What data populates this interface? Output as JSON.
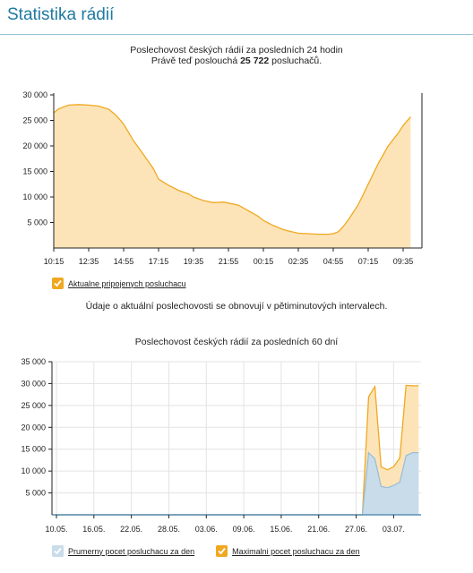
{
  "page": {
    "title": "Statistika rádií",
    "note": "Údaje o aktuální poslechovosti se obnovují v pětiminutových intervalech."
  },
  "colors": {
    "title": "#1f7aa0",
    "orange_line": "#f0a820",
    "orange_fill": "#fde4b8",
    "blue_fill": "#c8dcea",
    "blue_line": "#9bbfd6",
    "axis": "#222222"
  },
  "chart24": {
    "heading_line1": "Poslechovost českých rádií za posledních 24 hodin",
    "heading_line2_prefix": "Právě teď poslouchá",
    "heading_line2_value": "25 722",
    "heading_line2_suffix": "posluchačů.",
    "legend_label": "Aktualne pripojenych posluchacu",
    "legend_icon": "checkmark-icon"
  },
  "chart60": {
    "heading": "Poslechovost českých rádií za posledních 60 dní",
    "legend": [
      {
        "label": "Prumerny pocet posluchacu za den",
        "color": "#c8dcea",
        "icon": "checkmark-icon"
      },
      {
        "label": "Maximalni pocet posluchacu za den",
        "color": "#f0a820",
        "icon": "checkmark-icon"
      }
    ]
  },
  "chart_data": [
    {
      "type": "area",
      "title": "Poslechovost českých rádií za posledních 24 hodin",
      "x_ticks": [
        "10:15",
        "12:35",
        "14:55",
        "17:15",
        "19:35",
        "21:55",
        "00:15",
        "02:35",
        "04:55",
        "07:15",
        "09:35"
      ],
      "ylim": [
        0,
        30000
      ],
      "y_ticks": [
        5000,
        10000,
        15000,
        20000,
        25000,
        30000
      ],
      "y_tick_labels": [
        "5 000",
        "10 000",
        "15 000",
        "20 000",
        "25 000",
        "30 000"
      ],
      "grid": false,
      "series": [
        {
          "name": "Aktualne pripojenych posluchacu",
          "x": [
            "10:15",
            "10:35",
            "11:15",
            "11:55",
            "12:35",
            "13:15",
            "13:55",
            "14:25",
            "14:55",
            "15:35",
            "16:15",
            "16:55",
            "17:15",
            "17:55",
            "18:35",
            "19:15",
            "19:35",
            "20:15",
            "20:55",
            "21:35",
            "21:55",
            "22:35",
            "23:15",
            "23:55",
            "00:15",
            "00:55",
            "01:35",
            "02:15",
            "02:35",
            "03:15",
            "03:55",
            "04:35",
            "04:55",
            "05:15",
            "05:35",
            "05:55",
            "06:35",
            "07:15",
            "07:55",
            "08:35",
            "09:15",
            "09:35",
            "10:05"
          ],
          "values": [
            26500,
            27300,
            28000,
            28100,
            28000,
            27800,
            27200,
            26000,
            24300,
            21000,
            18300,
            15500,
            13500,
            12300,
            11300,
            10600,
            10000,
            9300,
            8900,
            9000,
            8800,
            8400,
            7300,
            6200,
            5400,
            4400,
            3600,
            3100,
            2900,
            2800,
            2700,
            2700,
            2800,
            3200,
            4200,
            5500,
            8500,
            12500,
            16500,
            20000,
            22500,
            24000,
            25722
          ]
        }
      ]
    },
    {
      "type": "area",
      "title": "Poslechovost českých rádií za posledních 60 dní",
      "x_ticks": [
        "10.05.",
        "16.05.",
        "22.05.",
        "28.05.",
        "03.06.",
        "09.06.",
        "15.06.",
        "21.06.",
        "27.06.",
        "03.07."
      ],
      "ylim": [
        0,
        35000
      ],
      "y_ticks": [
        5000,
        10000,
        15000,
        20000,
        25000,
        30000,
        35000
      ],
      "y_tick_labels": [
        "5 000",
        "10 000",
        "15 000",
        "20 000",
        "25 000",
        "30 000",
        "35 000"
      ],
      "grid": true,
      "series": [
        {
          "name": "Maximalni pocet posluchacu za den",
          "x": [
            "10.05.",
            "28.06.",
            "29.06.",
            "30.06.",
            "01.07.",
            "02.07.",
            "03.07.",
            "04.07.",
            "05.07.",
            "06.07.",
            "07.07."
          ],
          "values": [
            0,
            0,
            27000,
            29300,
            11000,
            10300,
            11000,
            13000,
            29600,
            29500,
            29500
          ]
        },
        {
          "name": "Prumerny pocet posluchacu za den",
          "x": [
            "10.05.",
            "28.06.",
            "29.06.",
            "30.06.",
            "01.07.",
            "02.07.",
            "03.07.",
            "04.07.",
            "05.07.",
            "06.07.",
            "07.07."
          ],
          "values": [
            0,
            0,
            14200,
            12800,
            6500,
            6200,
            6700,
            7500,
            13500,
            14200,
            14200
          ]
        }
      ]
    }
  ]
}
